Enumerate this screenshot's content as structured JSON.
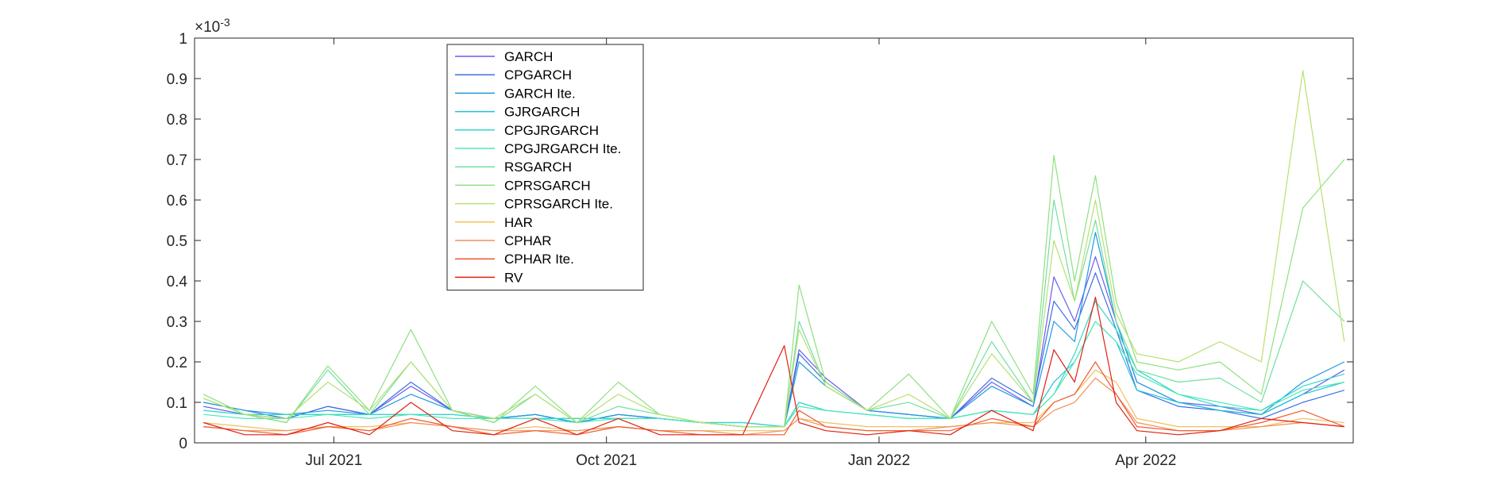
{
  "chart_data": {
    "type": "line",
    "title": "",
    "xlabel": "",
    "ylabel": "",
    "y_exponent_label": "×10-3",
    "x_range": [
      "2021-05-15",
      "2022-06-10"
    ],
    "ylim": [
      0,
      1
    ],
    "y_ticks": [
      "0",
      "0.1",
      "0.2",
      "0.3",
      "0.4",
      "0.5",
      "0.6",
      "0.7",
      "0.8",
      "0.9",
      "1"
    ],
    "x_ticks": [
      {
        "date": "2021-07-01",
        "label": "Jul 2021"
      },
      {
        "date": "2021-10-01",
        "label": "Oct 2021"
      },
      {
        "date": "2022-01-01",
        "label": "Jan 2022"
      },
      {
        "date": "2022-04-01",
        "label": "Apr 2022"
      }
    ],
    "grid": false,
    "legend_position": "top-left",
    "colors": {
      "GARCH": "#6a5cf0",
      "CPGARCH": "#3d6fe0",
      "GARCH Ite.": "#1f9be0",
      "GJRGARCH": "#20c3d8",
      "CPGJRGARCH": "#30d9c8",
      "CPGJRGARCH Ite.": "#50e8b8",
      "RSGARCH": "#70e0a0",
      "CPRSGARCH": "#8ee080",
      "CPRSGARCH Ite.": "#b8e070",
      "HAR": "#f0c060",
      "CPHAR": "#f0905a",
      "CPHAR Ite.": "#f05a30",
      "RV": "#e02010"
    },
    "series": [
      {
        "name": "GARCH",
        "x": [
          "2021-05-18",
          "2021-06-01",
          "2021-06-15",
          "2021-06-29",
          "2021-07-13",
          "2021-07-27",
          "2021-08-10",
          "2021-08-24",
          "2021-09-07",
          "2021-09-21",
          "2021-10-05",
          "2021-10-19",
          "2021-11-02",
          "2021-11-16",
          "2021-11-30",
          "2021-12-05",
          "2021-12-14",
          "2021-12-28",
          "2022-01-11",
          "2022-01-25",
          "2022-02-08",
          "2022-02-22",
          "2022-03-01",
          "2022-03-08",
          "2022-03-15",
          "2022-03-22",
          "2022-03-29",
          "2022-04-12",
          "2022-04-26",
          "2022-05-10",
          "2022-05-24",
          "2022-06-07"
        ],
        "values": [
          0.09,
          0.07,
          0.06,
          0.09,
          0.07,
          0.14,
          0.08,
          0.06,
          0.07,
          0.05,
          0.07,
          0.06,
          0.05,
          0.04,
          0.04,
          0.23,
          0.16,
          0.08,
          0.07,
          0.06,
          0.15,
          0.09,
          0.41,
          0.3,
          0.46,
          0.3,
          0.15,
          0.1,
          0.09,
          0.07,
          0.12,
          0.18
        ]
      },
      {
        "name": "CPGARCH",
        "x": [
          "2021-05-18",
          "2021-06-01",
          "2021-06-15",
          "2021-06-29",
          "2021-07-13",
          "2021-07-27",
          "2021-08-10",
          "2021-08-24",
          "2021-09-07",
          "2021-09-21",
          "2021-10-05",
          "2021-10-19",
          "2021-11-02",
          "2021-11-16",
          "2021-11-30",
          "2021-12-05",
          "2021-12-14",
          "2021-12-28",
          "2022-01-11",
          "2022-01-25",
          "2022-02-08",
          "2022-02-22",
          "2022-03-01",
          "2022-03-08",
          "2022-03-15",
          "2022-03-22",
          "2022-03-29",
          "2022-04-12",
          "2022-04-26",
          "2022-05-10",
          "2022-05-24",
          "2022-06-07"
        ],
        "values": [
          0.1,
          0.08,
          0.06,
          0.09,
          0.07,
          0.15,
          0.08,
          0.06,
          0.07,
          0.05,
          0.07,
          0.06,
          0.05,
          0.04,
          0.04,
          0.22,
          0.15,
          0.08,
          0.07,
          0.06,
          0.16,
          0.1,
          0.35,
          0.28,
          0.42,
          0.28,
          0.13,
          0.09,
          0.08,
          0.06,
          0.1,
          0.13
        ]
      },
      {
        "name": "GARCH Ite.",
        "x": [
          "2021-05-18",
          "2021-06-01",
          "2021-06-15",
          "2021-06-29",
          "2021-07-13",
          "2021-07-27",
          "2021-08-10",
          "2021-08-24",
          "2021-09-07",
          "2021-09-21",
          "2021-10-05",
          "2021-10-19",
          "2021-11-02",
          "2021-11-16",
          "2021-11-30",
          "2021-12-05",
          "2021-12-14",
          "2021-12-28",
          "2022-01-11",
          "2022-01-25",
          "2022-02-08",
          "2022-02-22",
          "2022-03-01",
          "2022-03-08",
          "2022-03-15",
          "2022-03-22",
          "2022-03-29",
          "2022-04-12",
          "2022-04-26",
          "2022-05-10",
          "2022-05-24",
          "2022-06-07"
        ],
        "values": [
          0.1,
          0.08,
          0.07,
          0.08,
          0.07,
          0.12,
          0.08,
          0.06,
          0.07,
          0.05,
          0.07,
          0.06,
          0.05,
          0.04,
          0.04,
          0.2,
          0.14,
          0.08,
          0.07,
          0.06,
          0.14,
          0.09,
          0.3,
          0.25,
          0.52,
          0.3,
          0.15,
          0.1,
          0.08,
          0.07,
          0.15,
          0.2
        ]
      },
      {
        "name": "GJRGARCH",
        "x": [
          "2021-05-18",
          "2021-06-01",
          "2021-06-15",
          "2021-06-29",
          "2021-07-13",
          "2021-07-27",
          "2021-08-10",
          "2021-08-24",
          "2021-09-07",
          "2021-09-21",
          "2021-10-05",
          "2021-10-19",
          "2021-11-02",
          "2021-11-16",
          "2021-11-30",
          "2021-12-05",
          "2021-12-14",
          "2021-12-28",
          "2022-01-11",
          "2022-01-25",
          "2022-02-08",
          "2022-02-22",
          "2022-03-01",
          "2022-03-08",
          "2022-03-15",
          "2022-03-22",
          "2022-03-29",
          "2022-04-12",
          "2022-04-26",
          "2022-05-10",
          "2022-05-24",
          "2022-06-07"
        ],
        "values": [
          0.08,
          0.07,
          0.07,
          0.07,
          0.07,
          0.07,
          0.07,
          0.06,
          0.06,
          0.06,
          0.06,
          0.06,
          0.05,
          0.05,
          0.04,
          0.1,
          0.08,
          0.07,
          0.06,
          0.06,
          0.08,
          0.07,
          0.15,
          0.2,
          0.3,
          0.25,
          0.13,
          0.1,
          0.08,
          0.07,
          0.12,
          0.15
        ]
      },
      {
        "name": "CPGJRGARCH",
        "x": [
          "2021-05-18",
          "2021-06-01",
          "2021-06-15",
          "2021-06-29",
          "2021-07-13",
          "2021-07-27",
          "2021-08-10",
          "2021-08-24",
          "2021-09-07",
          "2021-09-21",
          "2021-10-05",
          "2021-10-19",
          "2021-11-02",
          "2021-11-16",
          "2021-11-30",
          "2021-12-05",
          "2021-12-14",
          "2021-12-28",
          "2022-01-11",
          "2022-01-25",
          "2022-02-08",
          "2022-02-22",
          "2022-03-01",
          "2022-03-08",
          "2022-03-15",
          "2022-03-22",
          "2022-03-29",
          "2022-04-12",
          "2022-04-26",
          "2022-05-10",
          "2022-05-24",
          "2022-06-07"
        ],
        "values": [
          0.08,
          0.07,
          0.07,
          0.07,
          0.07,
          0.07,
          0.07,
          0.06,
          0.06,
          0.06,
          0.06,
          0.06,
          0.05,
          0.05,
          0.04,
          0.1,
          0.08,
          0.07,
          0.06,
          0.06,
          0.08,
          0.07,
          0.12,
          0.22,
          0.35,
          0.28,
          0.18,
          0.12,
          0.09,
          0.08,
          0.14,
          0.17
        ]
      },
      {
        "name": "CPGJRGARCH Ite.",
        "x": [
          "2021-05-18",
          "2021-06-01",
          "2021-06-15",
          "2021-06-29",
          "2021-07-13",
          "2021-07-27",
          "2021-08-10",
          "2021-08-24",
          "2021-09-07",
          "2021-09-21",
          "2021-10-05",
          "2021-10-19",
          "2021-11-02",
          "2021-11-16",
          "2021-11-30",
          "2021-12-05",
          "2021-12-14",
          "2021-12-28",
          "2022-01-11",
          "2022-01-25",
          "2022-02-08",
          "2022-02-22",
          "2022-03-01",
          "2022-03-08",
          "2022-03-15",
          "2022-03-22",
          "2022-03-29",
          "2022-04-12",
          "2022-04-26",
          "2022-05-10",
          "2022-05-24",
          "2022-06-07"
        ],
        "values": [
          0.07,
          0.06,
          0.06,
          0.07,
          0.06,
          0.07,
          0.06,
          0.06,
          0.06,
          0.05,
          0.06,
          0.06,
          0.05,
          0.04,
          0.04,
          0.09,
          0.08,
          0.07,
          0.06,
          0.06,
          0.08,
          0.07,
          0.12,
          0.2,
          0.3,
          0.25,
          0.17,
          0.12,
          0.1,
          0.08,
          0.13,
          0.15
        ]
      },
      {
        "name": "RSGARCH",
        "x": [
          "2021-05-18",
          "2021-06-01",
          "2021-06-15",
          "2021-06-29",
          "2021-07-13",
          "2021-07-27",
          "2021-08-10",
          "2021-08-24",
          "2021-09-07",
          "2021-09-21",
          "2021-10-05",
          "2021-10-19",
          "2021-11-02",
          "2021-11-16",
          "2021-11-30",
          "2021-12-05",
          "2021-12-14",
          "2021-12-28",
          "2022-01-11",
          "2022-01-25",
          "2022-02-08",
          "2022-02-22",
          "2022-03-01",
          "2022-03-08",
          "2022-03-15",
          "2022-03-22",
          "2022-03-29",
          "2022-04-12",
          "2022-04-26",
          "2022-05-10",
          "2022-05-24",
          "2022-06-07"
        ],
        "values": [
          0.11,
          0.07,
          0.05,
          0.18,
          0.07,
          0.2,
          0.08,
          0.05,
          0.12,
          0.05,
          0.09,
          0.07,
          0.05,
          0.04,
          0.04,
          0.3,
          0.14,
          0.08,
          0.1,
          0.06,
          0.25,
          0.1,
          0.6,
          0.35,
          0.55,
          0.3,
          0.18,
          0.15,
          0.16,
          0.1,
          0.4,
          0.3
        ]
      },
      {
        "name": "CPRSGARCH",
        "x": [
          "2021-05-18",
          "2021-06-01",
          "2021-06-15",
          "2021-06-29",
          "2021-07-13",
          "2021-07-27",
          "2021-08-10",
          "2021-08-24",
          "2021-09-07",
          "2021-09-21",
          "2021-10-05",
          "2021-10-19",
          "2021-11-02",
          "2021-11-16",
          "2021-11-30",
          "2021-12-05",
          "2021-12-14",
          "2021-12-28",
          "2022-01-11",
          "2022-01-25",
          "2022-02-08",
          "2022-02-22",
          "2022-03-01",
          "2022-03-08",
          "2022-03-15",
          "2022-03-22",
          "2022-03-29",
          "2022-04-12",
          "2022-04-26",
          "2022-05-10",
          "2022-05-24",
          "2022-06-07"
        ],
        "values": [
          0.12,
          0.07,
          0.05,
          0.19,
          0.08,
          0.28,
          0.08,
          0.05,
          0.14,
          0.05,
          0.15,
          0.07,
          0.05,
          0.04,
          0.04,
          0.39,
          0.15,
          0.08,
          0.17,
          0.06,
          0.3,
          0.12,
          0.71,
          0.4,
          0.66,
          0.35,
          0.2,
          0.18,
          0.2,
          0.12,
          0.58,
          0.7
        ]
      },
      {
        "name": "CPRSGARCH Ite.",
        "x": [
          "2021-05-18",
          "2021-06-01",
          "2021-06-15",
          "2021-06-29",
          "2021-07-13",
          "2021-07-27",
          "2021-08-10",
          "2021-08-24",
          "2021-09-07",
          "2021-09-21",
          "2021-10-05",
          "2021-10-19",
          "2021-11-02",
          "2021-11-16",
          "2021-11-30",
          "2021-12-05",
          "2021-12-14",
          "2021-12-28",
          "2022-01-11",
          "2022-01-25",
          "2022-02-08",
          "2022-02-22",
          "2022-03-01",
          "2022-03-08",
          "2022-03-15",
          "2022-03-22",
          "2022-03-29",
          "2022-04-12",
          "2022-04-26",
          "2022-05-10",
          "2022-05-24",
          "2022-06-07"
        ],
        "values": [
          0.11,
          0.07,
          0.06,
          0.15,
          0.08,
          0.2,
          0.08,
          0.06,
          0.12,
          0.05,
          0.12,
          0.07,
          0.05,
          0.04,
          0.04,
          0.28,
          0.14,
          0.08,
          0.12,
          0.06,
          0.22,
          0.1,
          0.5,
          0.35,
          0.6,
          0.32,
          0.22,
          0.2,
          0.25,
          0.2,
          0.92,
          0.25
        ]
      },
      {
        "name": "HAR",
        "x": [
          "2021-05-18",
          "2021-06-01",
          "2021-06-15",
          "2021-06-29",
          "2021-07-13",
          "2021-07-27",
          "2021-08-10",
          "2021-08-24",
          "2021-09-07",
          "2021-09-21",
          "2021-10-05",
          "2021-10-19",
          "2021-11-02",
          "2021-11-16",
          "2021-11-30",
          "2021-12-05",
          "2021-12-14",
          "2021-12-28",
          "2022-01-11",
          "2022-01-25",
          "2022-02-08",
          "2022-02-22",
          "2022-03-01",
          "2022-03-08",
          "2022-03-15",
          "2022-03-22",
          "2022-03-29",
          "2022-04-12",
          "2022-04-26",
          "2022-05-10",
          "2022-05-24",
          "2022-06-07"
        ],
        "values": [
          0.05,
          0.04,
          0.03,
          0.04,
          0.04,
          0.05,
          0.04,
          0.03,
          0.04,
          0.03,
          0.04,
          0.03,
          0.03,
          0.03,
          0.03,
          0.06,
          0.05,
          0.04,
          0.04,
          0.04,
          0.05,
          0.05,
          0.1,
          0.12,
          0.18,
          0.15,
          0.06,
          0.04,
          0.04,
          0.04,
          0.06,
          0.05
        ]
      },
      {
        "name": "CPHAR",
        "x": [
          "2021-05-18",
          "2021-06-01",
          "2021-06-15",
          "2021-06-29",
          "2021-07-13",
          "2021-07-27",
          "2021-08-10",
          "2021-08-24",
          "2021-09-07",
          "2021-09-21",
          "2021-10-05",
          "2021-10-19",
          "2021-11-02",
          "2021-11-16",
          "2021-11-30",
          "2021-12-05",
          "2021-12-14",
          "2021-12-28",
          "2022-01-11",
          "2022-01-25",
          "2022-02-08",
          "2022-02-22",
          "2022-03-01",
          "2022-03-08",
          "2022-03-15",
          "2022-03-22",
          "2022-03-29",
          "2022-04-12",
          "2022-04-26",
          "2022-05-10",
          "2022-05-24",
          "2022-06-07"
        ],
        "values": [
          0.04,
          0.03,
          0.03,
          0.04,
          0.03,
          0.05,
          0.04,
          0.03,
          0.03,
          0.03,
          0.04,
          0.03,
          0.03,
          0.02,
          0.03,
          0.06,
          0.04,
          0.03,
          0.03,
          0.04,
          0.05,
          0.04,
          0.08,
          0.1,
          0.16,
          0.12,
          0.05,
          0.03,
          0.03,
          0.04,
          0.05,
          0.04
        ]
      },
      {
        "name": "CPHAR Ite.",
        "x": [
          "2021-05-18",
          "2021-06-01",
          "2021-06-15",
          "2021-06-29",
          "2021-07-13",
          "2021-07-27",
          "2021-08-10",
          "2021-08-24",
          "2021-09-07",
          "2021-09-21",
          "2021-10-05",
          "2021-10-19",
          "2021-11-02",
          "2021-11-16",
          "2021-11-30",
          "2021-12-05",
          "2021-12-14",
          "2021-12-28",
          "2022-01-11",
          "2022-01-25",
          "2022-02-08",
          "2022-02-22",
          "2022-03-01",
          "2022-03-08",
          "2022-03-15",
          "2022-03-22",
          "2022-03-29",
          "2022-04-12",
          "2022-04-26",
          "2022-05-10",
          "2022-05-24",
          "2022-06-07"
        ],
        "values": [
          0.04,
          0.03,
          0.02,
          0.04,
          0.03,
          0.06,
          0.04,
          0.02,
          0.03,
          0.02,
          0.04,
          0.03,
          0.02,
          0.02,
          0.02,
          0.08,
          0.04,
          0.03,
          0.03,
          0.03,
          0.06,
          0.04,
          0.1,
          0.12,
          0.2,
          0.12,
          0.04,
          0.03,
          0.03,
          0.05,
          0.08,
          0.04
        ]
      },
      {
        "name": "RV",
        "x": [
          "2021-05-18",
          "2021-06-01",
          "2021-06-15",
          "2021-06-29",
          "2021-07-13",
          "2021-07-27",
          "2021-08-10",
          "2021-08-24",
          "2021-09-07",
          "2021-09-21",
          "2021-10-05",
          "2021-10-19",
          "2021-11-02",
          "2021-11-16",
          "2021-11-30",
          "2021-12-05",
          "2021-12-14",
          "2021-12-28",
          "2022-01-11",
          "2022-01-25",
          "2022-02-08",
          "2022-02-22",
          "2022-03-01",
          "2022-03-08",
          "2022-03-15",
          "2022-03-22",
          "2022-03-29",
          "2022-04-12",
          "2022-04-26",
          "2022-05-10",
          "2022-05-24",
          "2022-06-07"
        ],
        "values": [
          0.05,
          0.02,
          0.02,
          0.05,
          0.02,
          0.1,
          0.03,
          0.02,
          0.06,
          0.02,
          0.06,
          0.02,
          0.02,
          0.02,
          0.24,
          0.05,
          0.03,
          0.02,
          0.03,
          0.02,
          0.08,
          0.03,
          0.23,
          0.15,
          0.36,
          0.1,
          0.03,
          0.02,
          0.03,
          0.06,
          0.05,
          0.04
        ]
      }
    ]
  }
}
